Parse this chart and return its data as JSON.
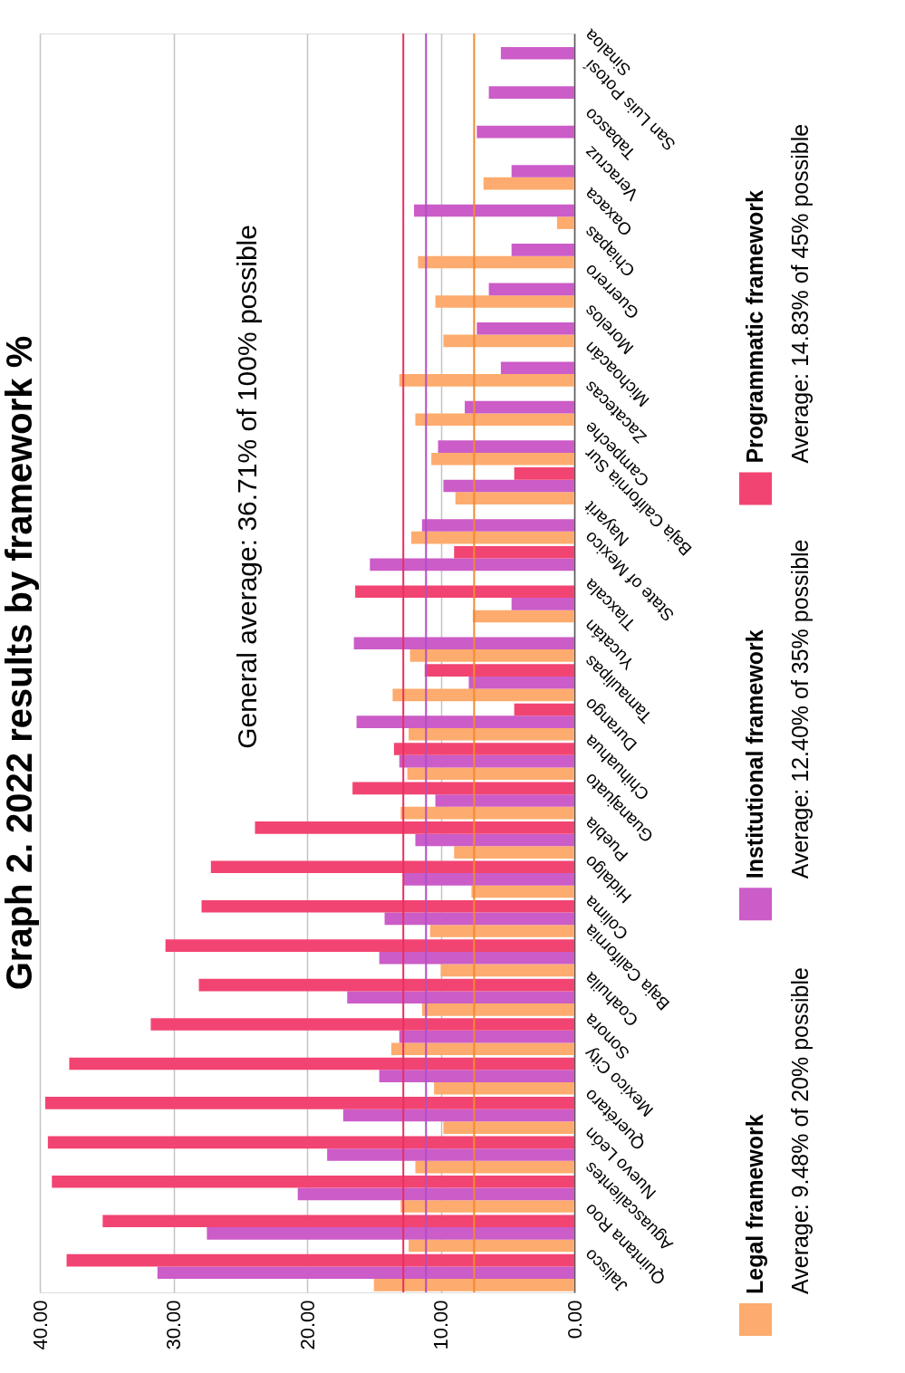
{
  "chart_data": {
    "type": "bar",
    "orientation": "horizontal",
    "title": "Graph 2. 2022 results by framework %",
    "categories": [
      "Sinaloa",
      "San Luis Potosí",
      "Tabasco",
      "Veracruz",
      "Oaxaca",
      "Chiapas",
      "Guerrero",
      "Morelos",
      "Michoacán",
      "Zacatecas",
      "Campeche",
      "Baja California Sur",
      "Nayarit",
      "State of Mexico",
      "Tlaxcala",
      "Yucatán",
      "Tamaulipas",
      "Durango",
      "Chihuahua",
      "Guanajuato",
      "Puebla",
      "Hidalgo",
      "Colima",
      "Baja California",
      "Coahuila",
      "Sonora",
      "Mexico City",
      "Querétaro",
      "Nuevo León",
      "Aguascalientes",
      "Quintana Roo",
      "Jalisco"
    ],
    "series": [
      {
        "name": "Legal framework",
        "color": "#fdab6e",
        "values": [
          null,
          null,
          null,
          6.8,
          1.3,
          11.7,
          10.4,
          9.8,
          13.1,
          11.9,
          10.7,
          8.9,
          12.2,
          null,
          7.6,
          12.3,
          13.6,
          12.4,
          12.5,
          13.0,
          9.0,
          7.7,
          10.8,
          10.0,
          11.4,
          13.7,
          10.5,
          9.8,
          11.9,
          13.0,
          12.4,
          15.0
        ]
      },
      {
        "name": "Institutional framework",
        "color": "#cb5cc8",
        "values": [
          5.5,
          6.4,
          7.3,
          4.7,
          12.0,
          4.7,
          6.4,
          7.3,
          5.5,
          8.2,
          10.2,
          9.8,
          11.4,
          15.3,
          4.7,
          16.5,
          7.9,
          16.3,
          13.1,
          10.4,
          11.9,
          12.8,
          14.2,
          14.6,
          17.0,
          13.1,
          14.6,
          17.3,
          18.5,
          20.7,
          27.5,
          31.2
        ]
      },
      {
        "name": "Programmatic framework",
        "color": "#f24472",
        "values": [
          null,
          null,
          null,
          null,
          null,
          null,
          null,
          null,
          null,
          null,
          null,
          4.5,
          null,
          9.0,
          16.4,
          null,
          11.2,
          4.5,
          13.5,
          16.6,
          23.9,
          27.2,
          27.9,
          30.6,
          28.1,
          31.7,
          37.8,
          39.6,
          39.4,
          39.1,
          35.3,
          38.0
        ]
      }
    ],
    "xlim": [
      40,
      0
    ],
    "xticks": [
      {
        "value": 0,
        "label": "0.00"
      },
      {
        "value": 10,
        "label": "10.00"
      },
      {
        "value": 20,
        "label": "20.00"
      },
      {
        "value": 30,
        "label": "30.00"
      },
      {
        "value": 40,
        "label": "40.00"
      }
    ],
    "ref_lines": [
      {
        "axis": "x",
        "value": 12.8,
        "color": "#e8305e"
      },
      {
        "axis": "x",
        "value": 11.1,
        "color": "#b04fc8"
      },
      {
        "axis": "x",
        "value": 7.5,
        "color": "#f08a30"
      }
    ],
    "annotations": [
      "General average: 36.71% of 100% possible",
      "Average: 9.48% of 20% possible",
      "Average: 12.40% of 35% possible",
      "Average: 14.83% of 45% possible"
    ],
    "grid": "x",
    "legend": "right"
  }
}
